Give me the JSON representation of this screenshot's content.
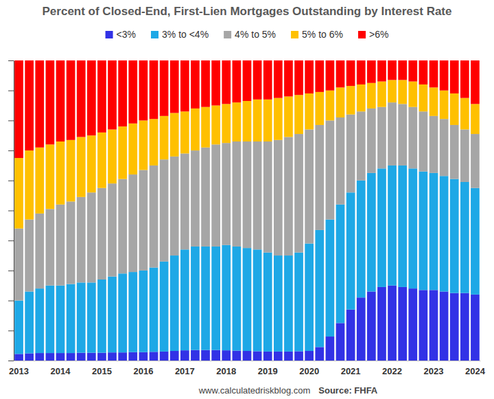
{
  "chart_data": {
    "type": "bar",
    "title": "Percent of Closed-End, First-Lien Mortgages Outstanding by Interest Rate",
    "annotations": [
      "www.calculatedriskblog.com",
      "Source: FHFA"
    ],
    "stacked": true,
    "grid": false,
    "legend": "top",
    "tick_labels": "x",
    "categories": [
      "2013",
      null,
      null,
      null,
      "2014",
      null,
      null,
      null,
      "2015",
      null,
      null,
      null,
      "2016",
      null,
      null,
      null,
      "2017",
      null,
      null,
      null,
      "2018",
      null,
      null,
      null,
      "2019",
      null,
      null,
      null,
      "2020",
      null,
      null,
      null,
      "2021",
      null,
      null,
      null,
      "2022",
      null,
      null,
      null,
      "2023",
      null,
      null,
      null,
      "2024"
    ],
    "ylim": [
      0,
      100
    ],
    "yticks": [
      0,
      10,
      20,
      30,
      40,
      50,
      60,
      70,
      80,
      90,
      100
    ],
    "series": [
      {
        "name": "<3%",
        "color": "#3232e6",
        "values": [
          2.2,
          2.4,
          2.5,
          2.5,
          2.5,
          2.5,
          2.6,
          2.6,
          2.6,
          2.7,
          2.7,
          2.8,
          2.8,
          2.9,
          3,
          3.2,
          3.4,
          3.5,
          3.5,
          3.5,
          3.4,
          3.3,
          3.2,
          3.1,
          3,
          3,
          3,
          3.1,
          3.2,
          4.5,
          8,
          12.5,
          17,
          21,
          23,
          24.5,
          25,
          24.5,
          24,
          23.5,
          23.5,
          23,
          22.5,
          22.5,
          22
        ]
      },
      {
        "name": "3% to <4%",
        "color": "#1ea8e6",
        "values": [
          17.8,
          20.6,
          21.5,
          22.5,
          22.5,
          23,
          23.4,
          23.4,
          24.4,
          25.3,
          26.3,
          26.7,
          27.2,
          28.1,
          30,
          31.8,
          33.6,
          34.5,
          34.5,
          34.5,
          35.1,
          34.7,
          34.3,
          33.9,
          33,
          32,
          32,
          32.9,
          35.8,
          39,
          39,
          39.5,
          39,
          39,
          39.5,
          39.5,
          40,
          40.5,
          40,
          39.5,
          39,
          38.5,
          38,
          37,
          35.5
        ]
      },
      {
        "name": "4% to 5%",
        "color": "#a6a6a6",
        "values": [
          24,
          24,
          25,
          25.5,
          27,
          27.5,
          28.5,
          30,
          30.5,
          31,
          31.5,
          32.5,
          33.5,
          34,
          34,
          33,
          32,
          32,
          33,
          34,
          34,
          35,
          35.5,
          36,
          37,
          38.5,
          39.5,
          39.5,
          38,
          35,
          33,
          29,
          26,
          23,
          21.5,
          20.5,
          21,
          20.5,
          20.5,
          20,
          19,
          19,
          18,
          17.5,
          18
        ]
      },
      {
        "name": "5% to 6%",
        "color": "#ffc000",
        "values": [
          23.5,
          23,
          22,
          21.5,
          21,
          20.5,
          20,
          19,
          18.5,
          18,
          17.5,
          17,
          16.5,
          15.5,
          14.5,
          14.5,
          14,
          14,
          13.5,
          13,
          13,
          13,
          13.5,
          14,
          14,
          14,
          13.5,
          13,
          12,
          11,
          10,
          10,
          9.5,
          9,
          8.5,
          8.5,
          7.5,
          8,
          8.5,
          9,
          9.5,
          9.5,
          10.5,
          10.5,
          10
        ]
      },
      {
        "name": ">6%",
        "color": "#ff0000",
        "values": [
          32.5,
          30,
          29,
          28,
          27,
          26.5,
          25.5,
          25,
          24,
          23,
          22,
          21,
          20,
          19.5,
          18.5,
          17.5,
          17,
          16,
          15.5,
          15,
          14.5,
          14,
          13.5,
          13,
          13,
          12.5,
          12,
          11.5,
          11,
          10.5,
          10,
          9,
          8.5,
          8,
          7.5,
          7,
          6.5,
          6.5,
          7,
          8,
          9,
          10,
          11,
          12.5,
          14.5
        ]
      }
    ]
  }
}
